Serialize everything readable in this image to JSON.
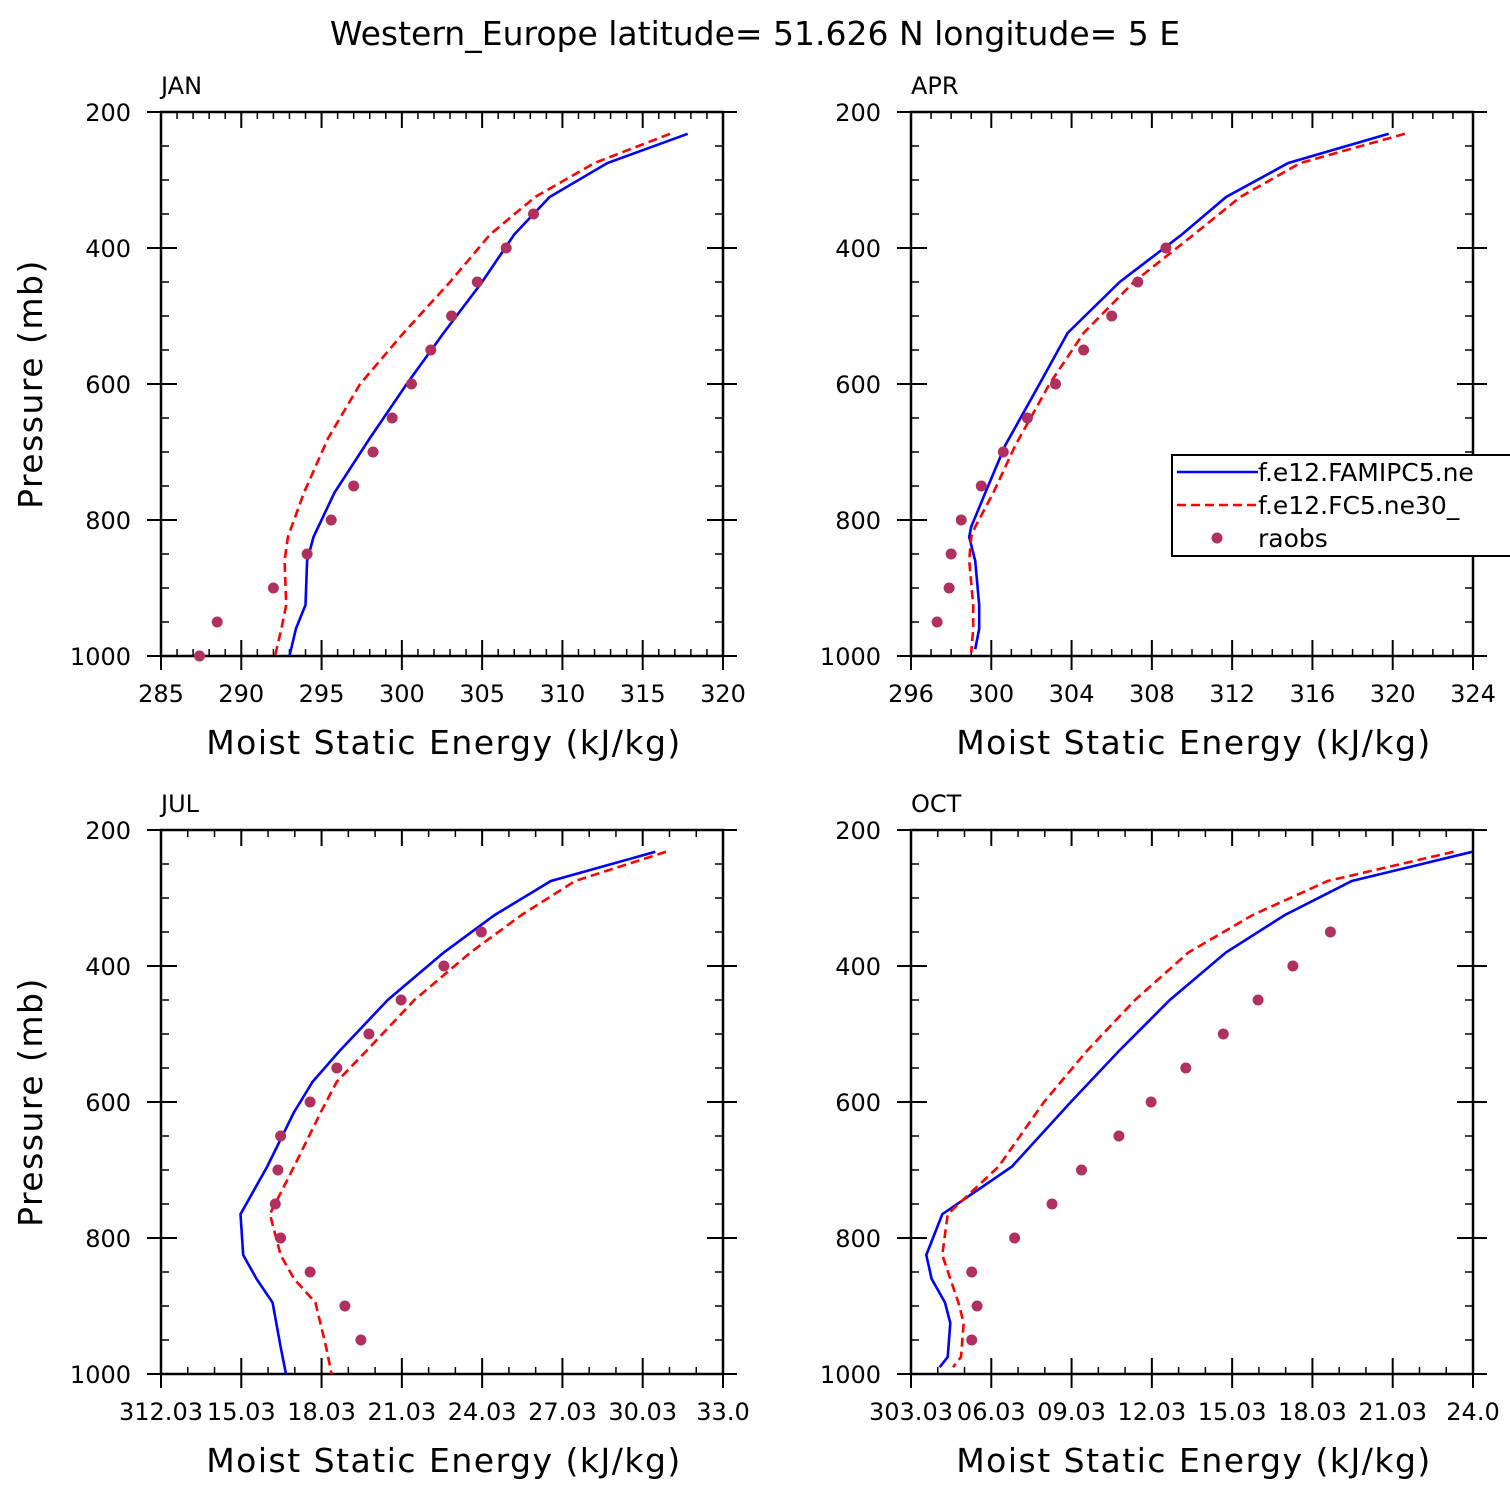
{
  "title": "Western_Europe  latitude= 51.626 N longitude= 5 E",
  "legend": {
    "entries": [
      {
        "label": "f.e12.FAMIPC5.ne",
        "color": "#0000ff",
        "style": "solid"
      },
      {
        "label": "f.e12.FC5.ne30_",
        "color": "#ff0000",
        "style": "dashed"
      },
      {
        "label": "raobs",
        "color": "#b03060",
        "style": "dots"
      }
    ],
    "placement": "right-middle of APR panel (clipped at page edge)"
  },
  "colors": {
    "model1": "#0000ff",
    "model2": "#ff0000",
    "raobs": "#b03060"
  },
  "chart_data": [
    {
      "type": "line",
      "panel_label": "JAN",
      "xlabel": "Moist Static Energy (kJ/kg)",
      "ylabel": "Pressure (mb)",
      "xlim": [
        285,
        320
      ],
      "ylim": [
        1000,
        200
      ],
      "xticks": [
        "285",
        "290",
        "295",
        "300",
        "305",
        "310",
        "315",
        "320"
      ],
      "xtick_values": [
        285,
        290,
        295,
        300,
        305,
        310,
        315,
        320
      ],
      "xminor": 1,
      "yticks": [
        "200",
        "400",
        "600",
        "800",
        "1000"
      ],
      "ytick_values": [
        200,
        400,
        600,
        800,
        1000
      ],
      "yminor": 50,
      "series": [
        {
          "name": "f.e12.FAMIPC5.ne",
          "style": "solid",
          "color": "#0000ff",
          "points": [
            [
              317.8,
              232
            ],
            [
              312.8,
              275
            ],
            [
              309.2,
              325
            ],
            [
              307.0,
              380
            ],
            [
              305.0,
              450
            ],
            [
              302.6,
              525
            ],
            [
              300.3,
              600
            ],
            [
              298.0,
              680
            ],
            [
              295.8,
              760
            ],
            [
              294.5,
              825
            ],
            [
              294.1,
              860
            ],
            [
              294.0,
              925
            ],
            [
              293.4,
              960
            ],
            [
              293.0,
              1000
            ]
          ]
        },
        {
          "name": "f.e12.FC5.ne30_",
          "style": "dashed",
          "color": "#ff0000",
          "points": [
            [
              316.7,
              232
            ],
            [
              312.0,
              275
            ],
            [
              308.3,
              325
            ],
            [
              305.5,
              380
            ],
            [
              303.0,
              450
            ],
            [
              300.1,
              525
            ],
            [
              297.4,
              600
            ],
            [
              295.4,
              680
            ],
            [
              293.9,
              760
            ],
            [
              292.9,
              825
            ],
            [
              292.7,
              860
            ],
            [
              292.8,
              925
            ],
            [
              292.5,
              960
            ],
            [
              292.1,
              1000
            ]
          ]
        }
      ],
      "raobs": [
        [
          287.4,
          1000
        ],
        [
          288.5,
          950
        ],
        [
          292.0,
          900
        ],
        [
          294.1,
          850
        ],
        [
          295.6,
          800
        ],
        [
          297.0,
          750
        ],
        [
          298.2,
          700
        ],
        [
          299.4,
          650
        ],
        [
          300.6,
          600
        ],
        [
          301.8,
          550
        ],
        [
          303.1,
          500
        ],
        [
          304.7,
          450
        ],
        [
          306.5,
          400
        ],
        [
          308.2,
          350
        ]
      ]
    },
    {
      "type": "line",
      "panel_label": "APR",
      "xlabel": "Moist Static Energy (kJ/kg)",
      "ylabel": "",
      "xlim": [
        296,
        324
      ],
      "ylim": [
        1000,
        200
      ],
      "xticks": [
        "296",
        "300",
        "304",
        "308",
        "312",
        "316",
        "320",
        "324"
      ],
      "xtick_values": [
        296,
        300,
        304,
        308,
        312,
        316,
        320,
        324
      ],
      "xminor": 1,
      "yticks": [
        "200",
        "400",
        "600",
        "800",
        "1000"
      ],
      "ytick_values": [
        200,
        400,
        600,
        800,
        1000
      ],
      "yminor": 50,
      "series": [
        {
          "name": "f.e12.FAMIPC5.ne",
          "style": "solid",
          "color": "#0000ff",
          "points": [
            [
              319.8,
              232
            ],
            [
              314.8,
              275
            ],
            [
              311.7,
              325
            ],
            [
              309.5,
              380
            ],
            [
              306.4,
              450
            ],
            [
              303.8,
              525
            ],
            [
              302.4,
              600
            ],
            [
              300.7,
              690
            ],
            [
              299.7,
              760
            ],
            [
              299.0,
              810
            ],
            [
              298.9,
              825
            ],
            [
              299.2,
              860
            ],
            [
              299.4,
              925
            ],
            [
              299.4,
              960
            ],
            [
              299.2,
              990
            ]
          ]
        },
        {
          "name": "f.e12.FC5.ne30_",
          "style": "dashed",
          "color": "#ff0000",
          "points": [
            [
              320.6,
              232
            ],
            [
              315.4,
              275
            ],
            [
              312.4,
              325
            ],
            [
              310.1,
              380
            ],
            [
              307.1,
              450
            ],
            [
              304.6,
              525
            ],
            [
              302.9,
              600
            ],
            [
              301.2,
              690
            ],
            [
              300.1,
              760
            ],
            [
              299.2,
              810
            ],
            [
              299.0,
              825
            ],
            [
              298.9,
              860
            ],
            [
              299.1,
              925
            ],
            [
              299.1,
              960
            ],
            [
              299.0,
              995
            ]
          ]
        }
      ],
      "raobs": [
        [
          297.3,
          950
        ],
        [
          297.9,
          900
        ],
        [
          298.0,
          850
        ],
        [
          298.5,
          800
        ],
        [
          299.5,
          750
        ],
        [
          300.6,
          700
        ],
        [
          301.8,
          650
        ],
        [
          303.2,
          600
        ],
        [
          304.6,
          550
        ],
        [
          306.0,
          500
        ],
        [
          307.3,
          450
        ],
        [
          308.7,
          400
        ]
      ]
    },
    {
      "type": "line",
      "panel_label": "JUL",
      "xlabel": "Moist Static Energy (kJ/kg)",
      "ylabel": "Pressure (mb)",
      "xlim": [
        312.03,
        333.03
      ],
      "ylim": [
        1000,
        200
      ],
      "xticks": [
        "312.03",
        "15.03",
        "18.03",
        "21.03",
        "24.03",
        "27.03",
        "30.03",
        "33.0"
      ],
      "xtick_values": [
        312.03,
        315.03,
        318.03,
        321.03,
        324.03,
        327.03,
        330.03,
        333.03
      ],
      "xminor": 1,
      "yticks": [
        "200",
        "400",
        "600",
        "800",
        "1000"
      ],
      "ytick_values": [
        200,
        400,
        600,
        800,
        1000
      ],
      "yminor": 50,
      "series": [
        {
          "name": "f.e12.FAMIPC5.ne",
          "style": "solid",
          "color": "#0000ff",
          "points": [
            [
              330.5,
              232
            ],
            [
              326.6,
              275
            ],
            [
              324.5,
              325
            ],
            [
              322.6,
              380
            ],
            [
              320.5,
              450
            ],
            [
              318.7,
              525
            ],
            [
              317.7,
              570
            ],
            [
              317.0,
              615
            ],
            [
              316.0,
              695
            ],
            [
              315.0,
              765
            ],
            [
              315.1,
              825
            ],
            [
              315.6,
              860
            ],
            [
              316.2,
              895
            ],
            [
              316.5,
              960
            ],
            [
              316.7,
              1000
            ]
          ]
        },
        {
          "name": "f.e12.FC5.ne30_",
          "style": "dashed",
          "color": "#ff0000",
          "points": [
            [
              330.9,
              232
            ],
            [
              327.5,
              275
            ],
            [
              325.5,
              325
            ],
            [
              323.6,
              380
            ],
            [
              321.5,
              450
            ],
            [
              319.7,
              525
            ],
            [
              318.6,
              570
            ],
            [
              318.0,
              615
            ],
            [
              317.0,
              695
            ],
            [
              316.1,
              765
            ],
            [
              316.5,
              825
            ],
            [
              317.0,
              860
            ],
            [
              317.8,
              895
            ],
            [
              318.2,
              960
            ],
            [
              318.4,
              1000
            ]
          ]
        }
      ],
      "raobs": [
        [
          319.5,
          950
        ],
        [
          318.9,
          900
        ],
        [
          317.6,
          850
        ],
        [
          316.5,
          800
        ],
        [
          316.3,
          750
        ],
        [
          316.4,
          700
        ],
        [
          316.5,
          650
        ],
        [
          317.6,
          600
        ],
        [
          318.6,
          550
        ],
        [
          319.8,
          500
        ],
        [
          321.0,
          450
        ],
        [
          322.6,
          400
        ],
        [
          324.0,
          350
        ]
      ]
    },
    {
      "type": "line",
      "panel_label": "OCT",
      "xlabel": "Moist Static Energy (kJ/kg)",
      "ylabel": "",
      "xlim": [
        303.03,
        324.03
      ],
      "ylim": [
        1000,
        200
      ],
      "xticks": [
        "303.03",
        "06.03",
        "09.03",
        "12.03",
        "15.03",
        "18.03",
        "21.03",
        "24.0"
      ],
      "xtick_values": [
        303.03,
        306.03,
        309.03,
        312.03,
        315.03,
        318.03,
        321.03,
        324.03
      ],
      "xminor": 1,
      "yticks": [
        "200",
        "400",
        "600",
        "800",
        "1000"
      ],
      "ytick_values": [
        200,
        400,
        600,
        800,
        1000
      ],
      "yminor": 50,
      "series": [
        {
          "name": "f.e12.FAMIPC5.ne",
          "style": "solid",
          "color": "#0000ff",
          "points": [
            [
              324.0,
              232
            ],
            [
              319.5,
              275
            ],
            [
              317.0,
              325
            ],
            [
              314.8,
              380
            ],
            [
              312.7,
              450
            ],
            [
              310.8,
              525
            ],
            [
              309.0,
              600
            ],
            [
              306.8,
              695
            ],
            [
              304.2,
              765
            ],
            [
              303.6,
              825
            ],
            [
              303.8,
              860
            ],
            [
              304.3,
              895
            ],
            [
              304.5,
              925
            ],
            [
              304.4,
              975
            ],
            [
              304.1,
              990
            ]
          ]
        },
        {
          "name": "f.e12.FC5.ne30_",
          "style": "dashed",
          "color": "#ff0000",
          "points": [
            [
              323.3,
              232
            ],
            [
              318.6,
              275
            ],
            [
              315.8,
              325
            ],
            [
              313.4,
              380
            ],
            [
              311.4,
              450
            ],
            [
              309.6,
              525
            ],
            [
              308.0,
              600
            ],
            [
              306.3,
              695
            ],
            [
              304.4,
              765
            ],
            [
              304.2,
              825
            ],
            [
              304.5,
              860
            ],
            [
              304.8,
              895
            ],
            [
              305.0,
              925
            ],
            [
              304.9,
              975
            ],
            [
              304.6,
              990
            ]
          ]
        }
      ],
      "raobs": [
        [
          305.3,
          950
        ],
        [
          305.5,
          900
        ],
        [
          305.3,
          850
        ],
        [
          306.9,
          800
        ],
        [
          308.3,
          750
        ],
        [
          309.4,
          700
        ],
        [
          310.8,
          650
        ],
        [
          312.0,
          600
        ],
        [
          313.3,
          550
        ],
        [
          314.7,
          500
        ],
        [
          316.0,
          450
        ],
        [
          317.3,
          400
        ],
        [
          318.7,
          350
        ]
      ]
    }
  ]
}
